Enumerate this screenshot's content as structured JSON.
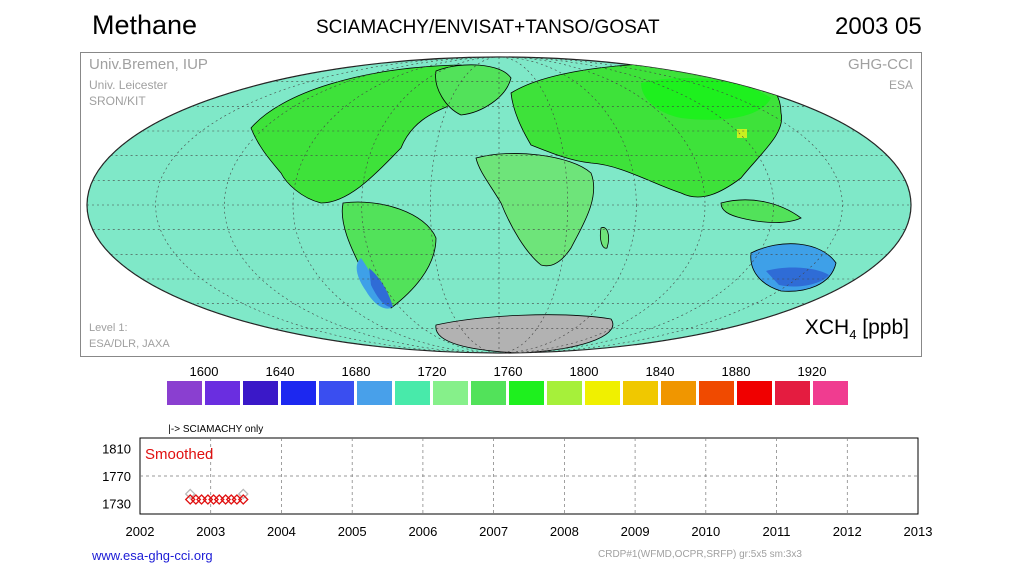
{
  "header": {
    "title": "Methane",
    "subtitle": "SCIAMACHY/ENVISAT+TANSO/GOSAT",
    "date": "2003 05"
  },
  "credits": {
    "institutions": [
      "Univ.Bremen, IUP",
      "Univ. Leicester",
      "SRON/KIT"
    ],
    "project": "GHG-CCI",
    "agency": "ESA",
    "level": [
      "Level 1:",
      "ESA/DLR, JAXA"
    ]
  },
  "map": {
    "projection": "hammer-aitoff",
    "unit_main": "XCH",
    "unit_sub": "4",
    "unit_tail": " [ppb]",
    "colors": {
      "background": "#7fe8c8",
      "land_high": "#3ee23a",
      "land_mid": "#6ee47a",
      "low": "#3ea0e8",
      "lowest": "#2f6cd6",
      "antarctica": "#b2b2b2"
    }
  },
  "colorbar": {
    "tick_labels": [
      "1600",
      "1640",
      "1680",
      "1720",
      "1760",
      "1800",
      "1840",
      "1880",
      "1920"
    ],
    "colors": [
      "#8a3fd0",
      "#6a2ee0",
      "#3a18c8",
      "#1c28f0",
      "#3a4ef0",
      "#48a0ea",
      "#48eaaa",
      "#86f08a",
      "#52e25a",
      "#1ef01e",
      "#a6f03a",
      "#f0f000",
      "#f0c800",
      "#f09600",
      "#f04a00",
      "#f00000",
      "#e41c40",
      "#f03c90"
    ]
  },
  "chart_data": {
    "type": "scatter",
    "title": "",
    "annotation": "|-> SCIAMACHY only",
    "label": "Smoothed",
    "x_tick_labels": [
      "2002",
      "2003",
      "2004",
      "2005",
      "2006",
      "2007",
      "2008",
      "2009",
      "2010",
      "2011",
      "2012",
      "2013"
    ],
    "y_tick_labels": [
      "1810",
      "1770",
      "1730"
    ],
    "xlim": [
      2002,
      2013
    ],
    "ylim": [
      1715,
      1825
    ],
    "grid": true,
    "series": [
      {
        "marker": "diamond",
        "color": "#b8b8b8",
        "x": [
          2002.71,
          2003.46
        ],
        "y": [
          1744,
          1744
        ]
      },
      {
        "marker": "diamond",
        "color": "#e01010",
        "x": [
          2002.71,
          2002.79,
          2002.87,
          2002.96,
          2003.04,
          2003.12,
          2003.21,
          2003.29,
          2003.37,
          2003.46
        ],
        "y": [
          1736,
          1736,
          1736,
          1736,
          1736,
          1736,
          1736,
          1736,
          1736,
          1736
        ]
      }
    ]
  },
  "footer": {
    "url": "www.esa-ghg-cci.org",
    "product": "CRDP#1(WFMD,OCPR,SRFP) gr:5x5 sm:3x3"
  }
}
